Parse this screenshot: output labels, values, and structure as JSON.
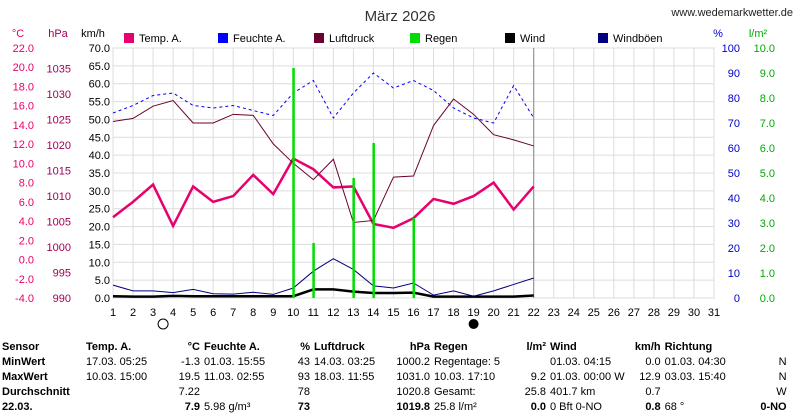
{
  "title": "März 2026",
  "site": "www.wedemarkwetter.de",
  "units": {
    "temp": "°C",
    "press": "hPa",
    "wind": "km/h",
    "hum": "%",
    "rain": "l/m²"
  },
  "legend": [
    {
      "name": "Temp. A.",
      "color": "#e8006e"
    },
    {
      "name": "Feuchte A.",
      "color": "#0000ff"
    },
    {
      "name": "Luftdruck",
      "color": "#6b0030"
    },
    {
      "name": "Regen",
      "color": "#00dd00"
    },
    {
      "name": "Wind",
      "color": "#000000"
    },
    {
      "name": "Windböen",
      "color": "#000080"
    }
  ],
  "chart_data": {
    "type": "line",
    "title": "März 2026",
    "x": [
      1,
      2,
      3,
      4,
      5,
      6,
      7,
      8,
      9,
      10,
      11,
      12,
      13,
      14,
      15,
      16,
      17,
      18,
      19,
      20,
      21,
      22
    ],
    "xlim": [
      1,
      31
    ],
    "x_ticks": [
      1,
      2,
      3,
      4,
      5,
      6,
      7,
      8,
      9,
      10,
      11,
      12,
      13,
      14,
      15,
      16,
      17,
      18,
      19,
      20,
      21,
      22,
      23,
      24,
      25,
      26,
      27,
      28,
      29,
      30,
      31
    ],
    "axes": {
      "temp": {
        "label": "°C",
        "ylim": [
          -4.0,
          22.0
        ],
        "ticks": [
          "22.0",
          "20.0",
          "18.0",
          "16.0",
          "14.0",
          "12.0",
          "10.0",
          "8.0",
          "6.0",
          "4.0",
          "2.0",
          "0.0",
          "-2.0",
          "-4.0"
        ]
      },
      "pressure": {
        "label": "hPa",
        "ylim": [
          990,
          1039
        ],
        "ticks": [
          "1035",
          "1030",
          "1025",
          "1020",
          "1015",
          "1010",
          "1005",
          "1000",
          "995",
          "990"
        ]
      },
      "wind": {
        "label": "km/h",
        "ylim": [
          0.0,
          70.0
        ],
        "ticks": [
          "70.0",
          "65.0",
          "60.0",
          "55.0",
          "50.0",
          "45.0",
          "40.0",
          "35.0",
          "30.0",
          "25.0",
          "20.0",
          "15.0",
          "10.0",
          "5.0",
          "0.0"
        ]
      },
      "humidity": {
        "label": "%",
        "ylim": [
          0,
          100
        ],
        "ticks": [
          "100",
          "90",
          "80",
          "70",
          "60",
          "50",
          "40",
          "30",
          "20",
          "10",
          "0"
        ]
      },
      "rain": {
        "label": "l/m²",
        "ylim": [
          0.0,
          10.0
        ],
        "ticks": [
          "10.0",
          "9.0",
          "8.0",
          "7.0",
          "6.0",
          "5.0",
          "4.0",
          "3.0",
          "2.0",
          "1.0",
          "0.0"
        ]
      }
    },
    "series": [
      {
        "name": "Temp. A.",
        "axis": "temp",
        "color": "#e8006e",
        "values": [
          4.4,
          6.0,
          7.8,
          3.5,
          7.6,
          6.0,
          6.6,
          8.8,
          6.8,
          10.5,
          9.4,
          7.5,
          7.6,
          3.7,
          3.3,
          4.3,
          6.3,
          5.8,
          6.6,
          8.0,
          5.2,
          7.6
        ]
      },
      {
        "name": "Feuchte A.",
        "axis": "humidity",
        "color": "#0000ff",
        "values": [
          74,
          77,
          81,
          82,
          77,
          76,
          77,
          75,
          73,
          82,
          87,
          72,
          82,
          90,
          84,
          87,
          83,
          76,
          72,
          70,
          85,
          72
        ]
      },
      {
        "name": "Luftdruck",
        "axis": "pressure",
        "color": "#6b0030",
        "values": [
          1024.6,
          1025.2,
          1027.6,
          1028.7,
          1024.3,
          1024.3,
          1026.0,
          1025.8,
          1020.2,
          1016.4,
          1013.2,
          1017.2,
          1004.8,
          1005.2,
          1013.7,
          1013.9,
          1023.8,
          1029.0,
          1026.0,
          1022.0,
          1021.0,
          1019.8
        ]
      },
      {
        "name": "Wind",
        "axis": "wind",
        "color": "#000000",
        "values": [
          0.5,
          0.4,
          0.4,
          0.6,
          0.5,
          0.5,
          0.5,
          0.5,
          0.5,
          0.5,
          2.4,
          2.4,
          1.8,
          1.4,
          1.4,
          1.5,
          0.4,
          0.4,
          0.4,
          0.4,
          0.4,
          0.7
        ]
      },
      {
        "name": "Windböen",
        "axis": "wind",
        "color": "#000080",
        "values": [
          3.6,
          2.0,
          2.0,
          1.5,
          2.4,
          1.2,
          1.1,
          1.6,
          1.0,
          2.8,
          7.5,
          11.0,
          8.0,
          3.4,
          2.8,
          4.2,
          0.8,
          2.0,
          0.5,
          2.0,
          3.8,
          5.6
        ]
      },
      {
        "name": "Regen",
        "axis": "rain",
        "color": "#00dd00",
        "kind": "bar",
        "x": [
          10,
          11,
          13,
          14,
          16
        ],
        "values": [
          9.2,
          2.2,
          4.8,
          6.2,
          3.2
        ]
      }
    ],
    "moon_markers": [
      {
        "day": 3.5,
        "phase": "full"
      },
      {
        "day": 19,
        "phase": "new"
      }
    ],
    "grid": true
  },
  "stats": {
    "headers": [
      "Sensor",
      "Temp. A.",
      "°C",
      "Feuchte A.",
      "%",
      "Luftdruck",
      "hPa",
      "Regen",
      "l/m²",
      "Wind",
      "km/h",
      "Richtung",
      ""
    ],
    "rows": [
      [
        "MinWert",
        "17.03. 05:25",
        "-1.3",
        "01.03. 15:55",
        "43",
        "14.03. 03:25",
        "1000.2",
        "Regentage: 5",
        "",
        "01.03. 04:15",
        "0.0",
        "01.03. 04:30",
        "N"
      ],
      [
        "MaxWert",
        "10.03. 15:00",
        "19.5",
        "11.03. 02:55",
        "93",
        "18.03. 11:55",
        "1031.0",
        "10.03. 17:10",
        "9.2",
        "01.03. 00:00 W",
        "12.9",
        "03.03. 15:40",
        "N"
      ],
      [
        "Durchschnitt",
        "",
        "7.22",
        "",
        "78",
        "",
        "1020.8",
        "Gesamt:",
        "25.8",
        "401.7 km",
        "0.7",
        "",
        "W"
      ],
      [
        "22.03.",
        "",
        "7.9",
        "5.98 g/m³",
        "73",
        "",
        "1019.8",
        "25.8 l/m²",
        "0.0",
        "0 Bft 0-NO",
        "0.8",
        "68 °",
        "0-NO"
      ]
    ]
  }
}
